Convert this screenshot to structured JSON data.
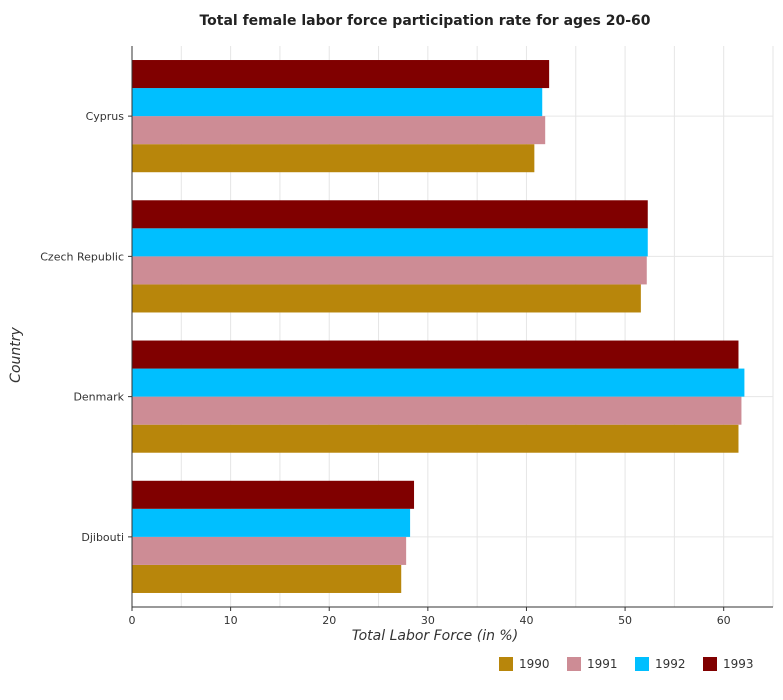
{
  "chart_data": {
    "type": "bar",
    "orientation": "horizontal",
    "title": "Total female labor force participation rate for ages 20-60",
    "xlabel": "Total Labor Force (in %)",
    "ylabel": "Country",
    "xlim": [
      0,
      65
    ],
    "x_ticks": [
      0,
      10,
      20,
      30,
      40,
      50,
      60
    ],
    "grid": true,
    "legend_position": "bottom-right",
    "categories": [
      "Cyprus",
      "Czech Republic",
      "Denmark",
      "Djibouti"
    ],
    "series": [
      {
        "name": "1990",
        "color": "#b8860b",
        "values": [
          40.8,
          51.6,
          61.5,
          27.3
        ]
      },
      {
        "name": "1991",
        "color": "#cd8c95",
        "values": [
          41.9,
          52.2,
          61.8,
          27.8
        ]
      },
      {
        "name": "1992",
        "color": "#00bfff",
        "values": [
          41.6,
          52.3,
          62.1,
          28.2
        ]
      },
      {
        "name": "1993",
        "color": "#800000",
        "values": [
          42.3,
          52.3,
          61.5,
          28.6
        ]
      }
    ]
  }
}
